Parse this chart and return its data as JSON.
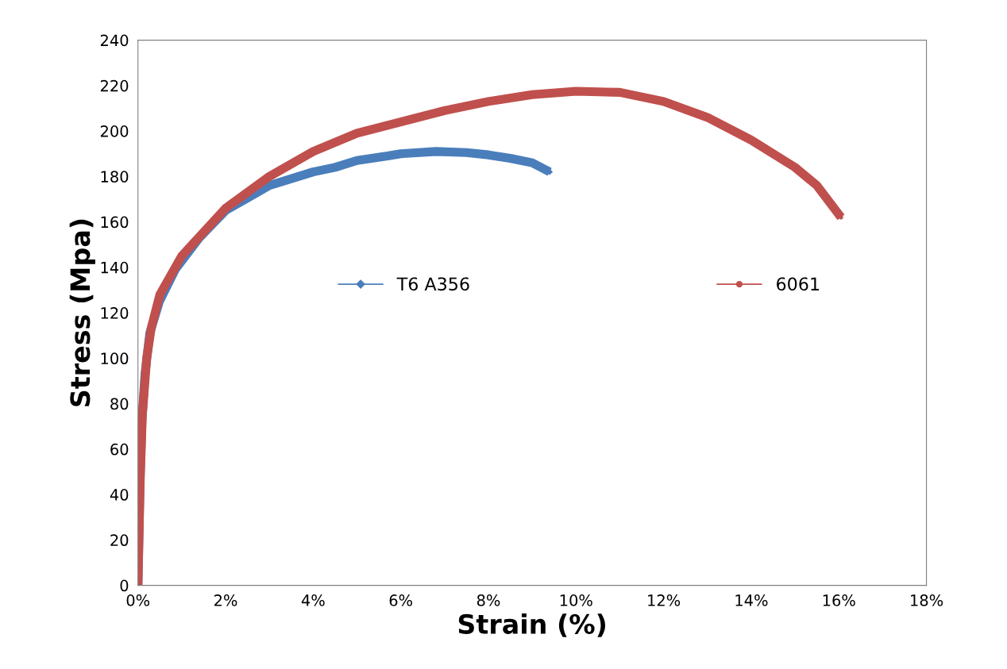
{
  "chart_data": {
    "type": "line",
    "xlabel": "Strain (%)",
    "ylabel": "Stress (Mpa)",
    "xlim": [
      0,
      18
    ],
    "ylim": [
      0,
      240
    ],
    "xticks": [
      {
        "value": 0,
        "label": "0%"
      },
      {
        "value": 2,
        "label": "2%"
      },
      {
        "value": 4,
        "label": "4%"
      },
      {
        "value": 6,
        "label": "6%"
      },
      {
        "value": 8,
        "label": "8%"
      },
      {
        "value": 10,
        "label": "10%"
      },
      {
        "value": 12,
        "label": "12%"
      },
      {
        "value": 14,
        "label": "14%"
      },
      {
        "value": 16,
        "label": "16%"
      },
      {
        "value": 18,
        "label": "18%"
      }
    ],
    "yticks": [
      0,
      20,
      40,
      60,
      80,
      100,
      120,
      140,
      160,
      180,
      200,
      220,
      240
    ],
    "grid": false,
    "legend": "center",
    "line_style": "solid",
    "series": [
      {
        "name": "T6 A356",
        "color": "#4a7ebb",
        "marker": "diamond",
        "x": [
          0,
          0.05,
          0.09,
          0.16,
          0.27,
          0.49,
          0.85,
          1.4,
          2.0,
          3.0,
          4.0,
          4.5,
          5.0,
          5.7,
          6.0,
          6.8,
          7.5,
          8.0,
          8.5,
          9.0,
          9.4
        ],
        "values": [
          0,
          48,
          72,
          93,
          111,
          125,
          139,
          153,
          165,
          176,
          182,
          184,
          187,
          189,
          190,
          191,
          190.5,
          189.5,
          188,
          186,
          182
        ]
      },
      {
        "name": "6061",
        "color": "#c0504d",
        "marker": "circle",
        "x": [
          0,
          0.05,
          0.1,
          0.2,
          0.3,
          0.5,
          1.0,
          2.0,
          3.0,
          4.0,
          5.0,
          6.0,
          7.0,
          8.0,
          9.0,
          10.0,
          11.0,
          12.0,
          13.0,
          14.0,
          15.0,
          15.5,
          16.05
        ],
        "values": [
          0,
          45,
          75,
          100,
          113,
          128,
          145,
          166,
          180,
          191,
          199,
          204,
          209,
          213,
          216,
          217.5,
          217,
          213,
          206,
          196,
          184,
          176,
          162
        ]
      }
    ]
  }
}
